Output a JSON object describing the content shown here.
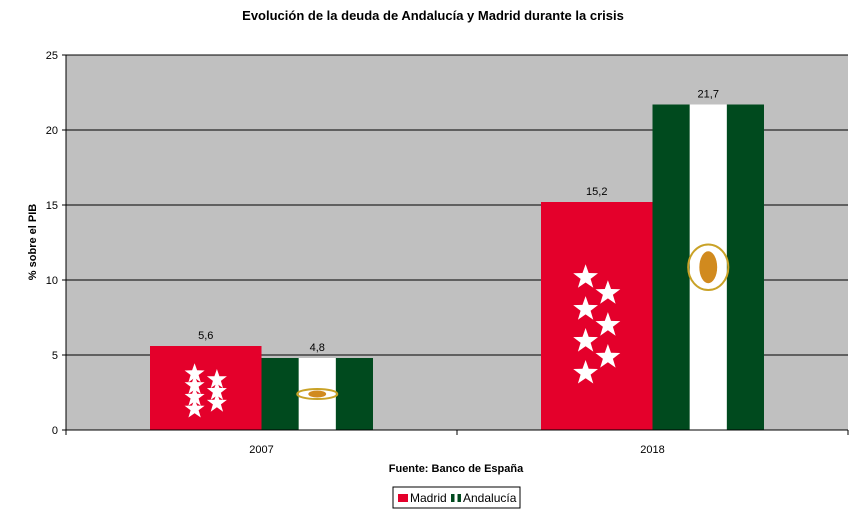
{
  "chart_data": {
    "type": "bar",
    "title": "Evolución de la deuda de Andalucía y Madrid durante la crisis",
    "xlabel": "Fuente: Banco de España",
    "ylabel": "% sobre el PIB",
    "categories": [
      "2007",
      "2018"
    ],
    "series": [
      {
        "name": "Madrid",
        "values": [
          5.6,
          15.2
        ],
        "labels": [
          "5,6",
          "15,2"
        ],
        "color": "#e4002b",
        "fill": "flag-of-madrid"
      },
      {
        "name": "Andalucía",
        "values": [
          4.8,
          21.7
        ],
        "labels": [
          "4,8",
          "21,7"
        ],
        "color": "#004a1e",
        "fill": "flag-of-andalucia"
      }
    ],
    "ylim": [
      0,
      25
    ],
    "yticks": [
      "0",
      "5",
      "10",
      "15",
      "20",
      "25"
    ],
    "grid": true,
    "plot_background": "#c0c0c0",
    "legend": "bottom"
  }
}
